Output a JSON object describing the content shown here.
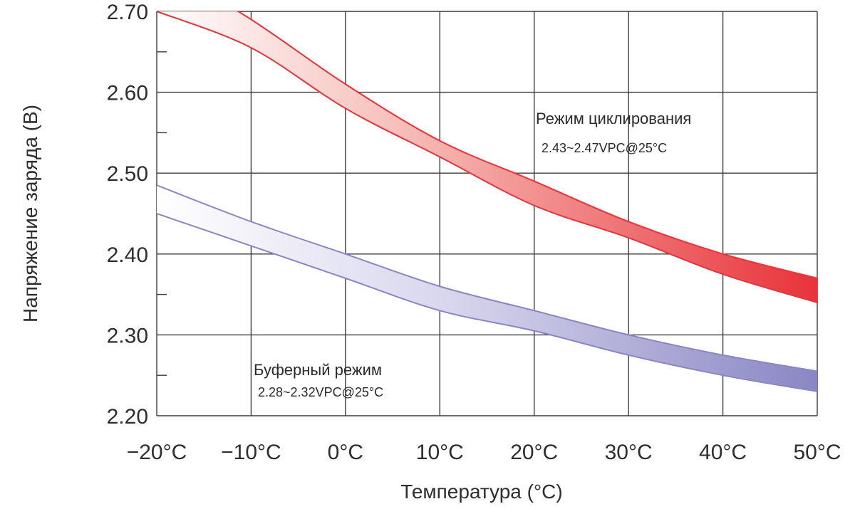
{
  "chart_data": {
    "type": "area",
    "xlabel": "Температура (°C)",
    "ylabel": "Напряжение заряда (В)",
    "xlim": [
      -20,
      50
    ],
    "ylim": [
      2.2,
      2.7
    ],
    "x_ticks": [
      -20,
      -10,
      0,
      10,
      20,
      30,
      40,
      50
    ],
    "x_tick_labels": [
      "−20°C",
      "−10°C",
      "0°C",
      "10°C",
      "20°C",
      "30°C",
      "40°C",
      "50°C"
    ],
    "y_ticks": [
      2.2,
      2.3,
      2.4,
      2.5,
      2.6,
      2.7
    ],
    "y_tick_labels": [
      "2.20",
      "2.30",
      "2.40",
      "2.50",
      "2.60",
      "2.70"
    ],
    "grid": true,
    "series": [
      {
        "name": "Режим циклирования",
        "subtitle": "2.43~2.47VPC@25°C",
        "color": "#e8333a",
        "x": [
          -20,
          -10,
          0,
          10,
          20,
          30,
          40,
          50
        ],
        "upper": [
          2.76,
          2.69,
          2.61,
          2.54,
          2.49,
          2.44,
          2.4,
          2.37
        ],
        "lower": [
          2.7,
          2.655,
          2.58,
          2.52,
          2.46,
          2.42,
          2.375,
          2.34
        ]
      },
      {
        "name": "Буферный режим",
        "subtitle": "2.28~2.32VPC@25°C",
        "color": "#8a86c4",
        "x": [
          -20,
          -10,
          0,
          10,
          20,
          30,
          40,
          50
        ],
        "upper": [
          2.485,
          2.44,
          2.4,
          2.36,
          2.33,
          2.3,
          2.275,
          2.255
        ],
        "lower": [
          2.45,
          2.41,
          2.37,
          2.33,
          2.305,
          2.275,
          2.25,
          2.23
        ]
      }
    ]
  }
}
